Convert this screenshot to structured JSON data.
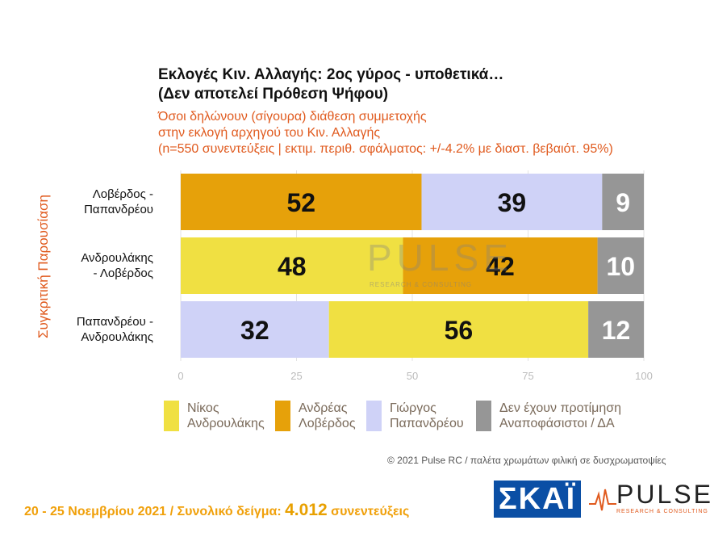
{
  "title_line1": "Εκλογές Κιν. Αλλαγής: 2ος γύρος - υποθετικά…",
  "title_line2": "(Δεν αποτελεί Πρόθεση Ψήφου)",
  "subtitle_line1": "Όσοι δηλώνουν (σίγουρα) διάθεση συμμετοχής",
  "subtitle_line2": "στην εκλογή αρχηγού του Κιν. Αλλαγής",
  "subtitle_line3": "(n=550 συνεντεύξεις | εκτιμ. περιθ. σφάλματος: +/-4.2% με διαστ. βεβαιότ. 95%)",
  "y_axis_title": "Συγκριτική Παρουσίαση",
  "colors": {
    "androulakis": "#f0e042",
    "loverdos": "#e6a10a",
    "papandreou": "#cfd2f7",
    "undecided": "#969696",
    "accent": "#e05a1e"
  },
  "chart_data": {
    "type": "bar",
    "orientation": "horizontal",
    "stacked": true,
    "xlim": [
      0,
      100
    ],
    "x_ticks": [
      "0",
      "25",
      "50",
      "75",
      "100"
    ],
    "categories": [
      "Λοβέρδος - Παπανδρέου",
      "Ανδρουλάκης - Λοβέρδος",
      "Παπανδρέου - Ανδρουλάκης"
    ],
    "category_lines": [
      [
        "Λοβέρδος -",
        "Παπανδρέου"
      ],
      [
        "Ανδρουλάκης",
        "- Λοβέρδος"
      ],
      [
        "Παπανδρέου -",
        "Ανδρουλάκης"
      ]
    ],
    "rows": [
      [
        {
          "series": "loverdos",
          "value": 52
        },
        {
          "series": "papandreou",
          "value": 39
        },
        {
          "series": "undecided",
          "value": 9
        }
      ],
      [
        {
          "series": "androulakis",
          "value": 48
        },
        {
          "series": "loverdos",
          "value": 42
        },
        {
          "series": "undecided",
          "value": 10
        }
      ],
      [
        {
          "series": "papandreou",
          "value": 32
        },
        {
          "series": "androulakis",
          "value": 56
        },
        {
          "series": "undecided",
          "value": 12
        }
      ]
    ]
  },
  "legend": [
    {
      "key": "androulakis",
      "label": "Νίκος\n Ανδρουλάκης"
    },
    {
      "key": "loverdos",
      "label": "Ανδρέας\nΛοβέρδος"
    },
    {
      "key": "papandreou",
      "label": "Γιώργος\nΠαπανδρέου"
    },
    {
      "key": "undecided",
      "label": "Δεν έχουν προτίμηση\nΑναποφάσιστοι / ΔΑ"
    }
  ],
  "copyright": "© 2021 Pulse RC  /  παλέτα χρωμάτων φιλική σε δυσχρωματοψίες",
  "footer": {
    "dates": "20 - 25 Νοεμβρίου 2021  /  Συνολικό δείγμα: ",
    "sample": "4.012",
    "interviews": " συνεντεύξεις"
  },
  "logos": {
    "skai": "ΣΚΑΪ",
    "pulse": "PULSE",
    "pulse_sub": "RESEARCH & CONSULTING"
  },
  "watermark": {
    "word": "PULSE",
    "sub": "RESEARCH & CONSULTING"
  }
}
